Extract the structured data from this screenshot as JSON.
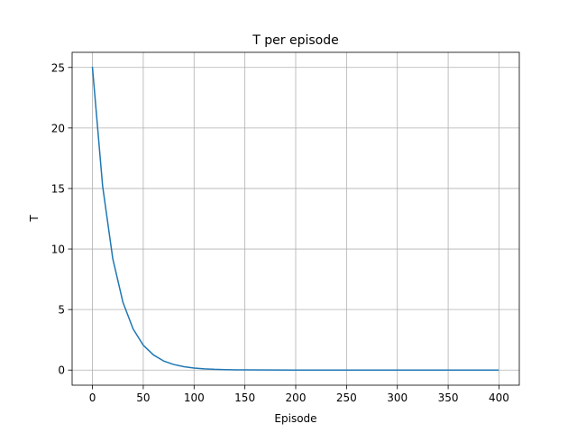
{
  "chart_data": {
    "type": "line",
    "title": "T per episode",
    "xlabel": "Episode",
    "ylabel": "T",
    "xlim": [
      -20,
      420
    ],
    "ylim": [
      -1.25,
      26.25
    ],
    "xticks": [
      0,
      50,
      100,
      150,
      200,
      250,
      300,
      350,
      400
    ],
    "yticks": [
      0,
      5,
      10,
      15,
      20,
      25
    ],
    "grid": true,
    "series": [
      {
        "color": "#1f77b4",
        "x": [
          0,
          10,
          20,
          30,
          40,
          50,
          60,
          70,
          80,
          90,
          100,
          110,
          120,
          130,
          140,
          150,
          175,
          200,
          250,
          300,
          350,
          399
        ],
        "y": [
          25,
          15.2,
          9.2,
          5.6,
          3.4,
          2.05,
          1.25,
          0.75,
          0.46,
          0.28,
          0.17,
          0.1,
          0.06,
          0.04,
          0.02,
          0.015,
          0.005,
          0.002,
          0,
          0,
          0,
          0
        ]
      }
    ]
  }
}
